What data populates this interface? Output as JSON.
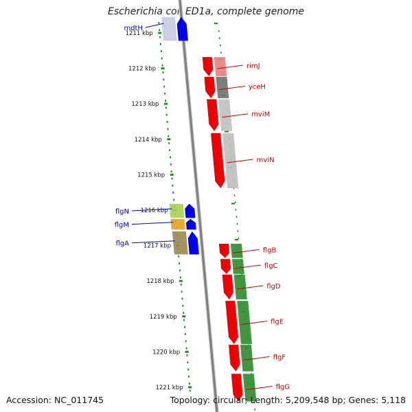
{
  "title": "Escherichia coli ED1a, complete genome",
  "accession": "Accession: NC_011745",
  "summary": "Topology: circular; Length: 5,209,548 bp; Genes: 5,118",
  "colors": {
    "forward_gene": "#0000ee",
    "reverse_gene": "#ee0000",
    "label_forward": "#0000cc",
    "label_reverse": "#cc0000",
    "backbone": "#808080",
    "ticks": "#228b22",
    "cog_green": "#2e8b2e"
  },
  "ruler": {
    "ticks": [
      {
        "kbp": 1211,
        "label": "1211 kbp"
      },
      {
        "kbp": 1212,
        "label": "1212 kbp"
      },
      {
        "kbp": 1213,
        "label": "1213 kbp"
      },
      {
        "kbp": 1214,
        "label": "1214 kbp"
      },
      {
        "kbp": 1215,
        "label": "1215 kbp"
      },
      {
        "kbp": 1216,
        "label": "1216 kbp"
      },
      {
        "kbp": 1217,
        "label": "1217 kbp"
      },
      {
        "kbp": 1218,
        "label": "1218 kbp"
      },
      {
        "kbp": 1219,
        "label": "1219 kbp"
      },
      {
        "kbp": 1220,
        "label": "1220 kbp"
      },
      {
        "kbp": 1221,
        "label": "1221 kbp"
      }
    ]
  },
  "genes": [
    {
      "name": "mdtH",
      "strand": "forward",
      "start_kbp": 1210.55,
      "end_kbp": 1211.22,
      "cog": "#c8c8e0"
    },
    {
      "name": "rimJ",
      "strand": "reverse",
      "start_kbp": 1211.68,
      "end_kbp": 1212.22,
      "cog": "#e88080"
    },
    {
      "name": "yceH",
      "strand": "reverse",
      "start_kbp": 1212.24,
      "end_kbp": 1212.84,
      "cog": "#707070"
    },
    {
      "name": "mviM",
      "strand": "reverse",
      "start_kbp": 1212.87,
      "end_kbp": 1213.77,
      "cog": "#c0c0c0"
    },
    {
      "name": "mviN",
      "strand": "reverse",
      "start_kbp": 1213.83,
      "end_kbp": 1215.38,
      "cog": "#bcbcbc"
    },
    {
      "name": "flgN",
      "strand": "forward",
      "start_kbp": 1215.82,
      "end_kbp": 1216.22,
      "cog": "#a8d050"
    },
    {
      "name": "flgM",
      "strand": "forward",
      "start_kbp": 1216.25,
      "end_kbp": 1216.55,
      "cog": "#e8a020"
    },
    {
      "name": "flgA",
      "strand": "forward",
      "start_kbp": 1216.6,
      "end_kbp": 1217.25,
      "cog": "#9a8850"
    },
    {
      "name": "flgB",
      "strand": "reverse",
      "start_kbp": 1216.95,
      "end_kbp": 1217.35,
      "cog": "#2e8b2e"
    },
    {
      "name": "flgC",
      "strand": "reverse",
      "start_kbp": 1217.38,
      "end_kbp": 1217.8,
      "cog": "#2e8b2e"
    },
    {
      "name": "flgD",
      "strand": "reverse",
      "start_kbp": 1217.82,
      "end_kbp": 1218.52,
      "cog": "#2e8b2e"
    },
    {
      "name": "flgE",
      "strand": "reverse",
      "start_kbp": 1218.56,
      "end_kbp": 1219.78,
      "cog": "#2e8b2e"
    },
    {
      "name": "flgF",
      "strand": "reverse",
      "start_kbp": 1219.8,
      "end_kbp": 1220.55,
      "cog": "#2e8b2e"
    },
    {
      "name": "flgG",
      "strand": "reverse",
      "start_kbp": 1220.62,
      "end_kbp": 1221.4,
      "cog": "#2e8b2e"
    }
  ]
}
